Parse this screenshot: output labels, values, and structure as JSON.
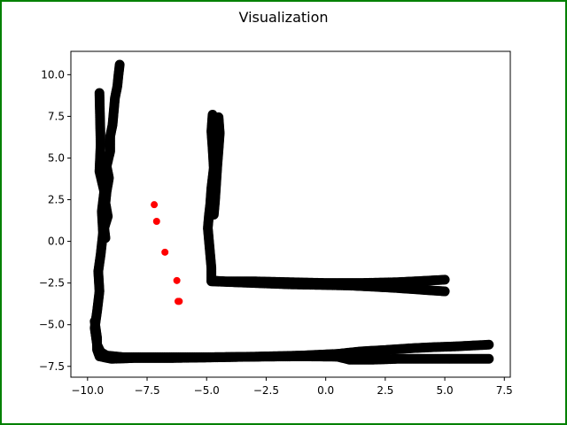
{
  "figure": {
    "title": "Visualization",
    "border_color": "#008000"
  },
  "chart_data": {
    "type": "scatter",
    "title": "Visualization",
    "xlabel": "",
    "ylabel": "",
    "xlim": [
      -10.7,
      7.75
    ],
    "ylim": [
      -8.15,
      11.4
    ],
    "xticks": [
      -10.0,
      -7.5,
      -5.0,
      -2.5,
      0.0,
      2.5,
      5.0,
      7.5
    ],
    "yticks": [
      -7.5,
      -5.0,
      -2.5,
      0.0,
      2.5,
      5.0,
      7.5,
      10.0
    ],
    "xtick_labels": [
      "−10.0",
      "−7.5",
      "−5.0",
      "−2.5",
      "0.0",
      "2.5",
      "5.0",
      "7.5"
    ],
    "ytick_labels": [
      "−7.5",
      "−5.0",
      "−2.5",
      "0.0",
      "2.5",
      "5.0",
      "7.5",
      "10.0"
    ],
    "grid": false,
    "series": [
      {
        "color": "#000000",
        "marker_size": 11,
        "strokes": [
          [
            [
              -9.5,
              8.9
            ],
            [
              -9.45,
              5.8
            ],
            [
              -9.5,
              4.2
            ],
            [
              -9.3,
              3.0
            ],
            [
              -9.4,
              1.8
            ],
            [
              -9.35,
              0.5
            ],
            [
              -9.45,
              -0.8
            ],
            [
              -9.55,
              -1.8
            ],
            [
              -9.5,
              -3.0
            ],
            [
              -9.6,
              -4.2
            ],
            [
              -9.7,
              -5.2
            ],
            [
              -9.6,
              -6.2
            ],
            [
              -9.45,
              -6.65
            ],
            [
              -9.2,
              -6.85
            ],
            [
              -8.5,
              -6.95
            ],
            [
              -7.0,
              -6.95
            ],
            [
              -5.0,
              -6.95
            ],
            [
              -3.0,
              -6.92
            ],
            [
              -1.0,
              -6.85
            ],
            [
              0.5,
              -6.75
            ],
            [
              1.5,
              -6.6
            ],
            [
              2.5,
              -6.52
            ],
            [
              3.5,
              -6.42
            ],
            [
              4.5,
              -6.35
            ],
            [
              5.5,
              -6.3
            ],
            [
              6.85,
              -6.2
            ]
          ],
          [
            [
              -9.7,
              -4.8
            ],
            [
              -9.6,
              -5.8
            ],
            [
              -9.6,
              -6.5
            ],
            [
              -9.5,
              -6.9
            ],
            [
              -9.0,
              -7.05
            ],
            [
              -8.0,
              -7.0
            ],
            [
              -6.5,
              -7.0
            ],
            [
              -5.0,
              -6.97
            ],
            [
              -3.0,
              -6.92
            ],
            [
              -1.0,
              -6.9
            ],
            [
              0.5,
              -6.92
            ],
            [
              1.0,
              -7.1
            ],
            [
              2.0,
              -7.1
            ],
            [
              3.0,
              -7.05
            ],
            [
              4.5,
              -7.05
            ],
            [
              6.85,
              -7.05
            ]
          ],
          [
            [
              -8.65,
              10.6
            ],
            [
              -8.7,
              10.0
            ],
            [
              -8.75,
              9.3
            ],
            [
              -8.85,
              8.6
            ],
            [
              -8.9,
              7.8
            ],
            [
              -8.95,
              7.0
            ],
            [
              -9.05,
              6.3
            ],
            [
              -9.05,
              5.4
            ],
            [
              -9.2,
              4.5
            ],
            [
              -9.1,
              3.8
            ],
            [
              -9.2,
              3.0
            ],
            [
              -9.25,
              2.3
            ],
            [
              -9.15,
              1.5
            ],
            [
              -9.3,
              0.8
            ],
            [
              -9.25,
              0.2
            ]
          ],
          [
            [
              -4.5,
              7.45
            ],
            [
              -4.45,
              6.5
            ],
            [
              -4.5,
              5.5
            ],
            [
              -4.55,
              4.6
            ],
            [
              -4.6,
              3.5
            ],
            [
              -4.65,
              2.4
            ],
            [
              -4.7,
              1.6
            ]
          ],
          [
            [
              -4.75,
              7.6
            ],
            [
              -4.8,
              6.6
            ],
            [
              -4.75,
              5.6
            ],
            [
              -4.7,
              4.4
            ],
            [
              -4.8,
              3.2
            ],
            [
              -4.85,
              2.2
            ],
            [
              -4.9,
              1.6
            ],
            [
              -4.95,
              0.8
            ],
            [
              -4.9,
              0.0
            ],
            [
              -4.85,
              -0.8
            ],
            [
              -4.8,
              -1.6
            ],
            [
              -4.8,
              -2.35
            ],
            [
              -4.2,
              -2.4
            ],
            [
              -3.0,
              -2.4
            ],
            [
              -1.5,
              -2.45
            ],
            [
              0.0,
              -2.5
            ],
            [
              1.5,
              -2.5
            ],
            [
              3.0,
              -2.45
            ],
            [
              4.0,
              -2.38
            ],
            [
              5.0,
              -2.3
            ]
          ],
          [
            [
              -4.8,
              -2.4
            ],
            [
              -3.0,
              -2.5
            ],
            [
              -1.5,
              -2.58
            ],
            [
              0.0,
              -2.62
            ],
            [
              1.0,
              -2.65
            ],
            [
              2.0,
              -2.72
            ],
            [
              3.0,
              -2.8
            ],
            [
              4.0,
              -2.9
            ],
            [
              5.0,
              -3.0
            ]
          ]
        ]
      },
      {
        "color": "#ff0000",
        "marker_size": 8,
        "points": [
          [
            -7.2,
            2.2
          ],
          [
            -7.1,
            1.2
          ],
          [
            -6.75,
            -0.65
          ],
          [
            -6.25,
            -2.35
          ],
          [
            -6.2,
            -3.6
          ],
          [
            -6.15,
            -3.6
          ]
        ]
      }
    ]
  }
}
